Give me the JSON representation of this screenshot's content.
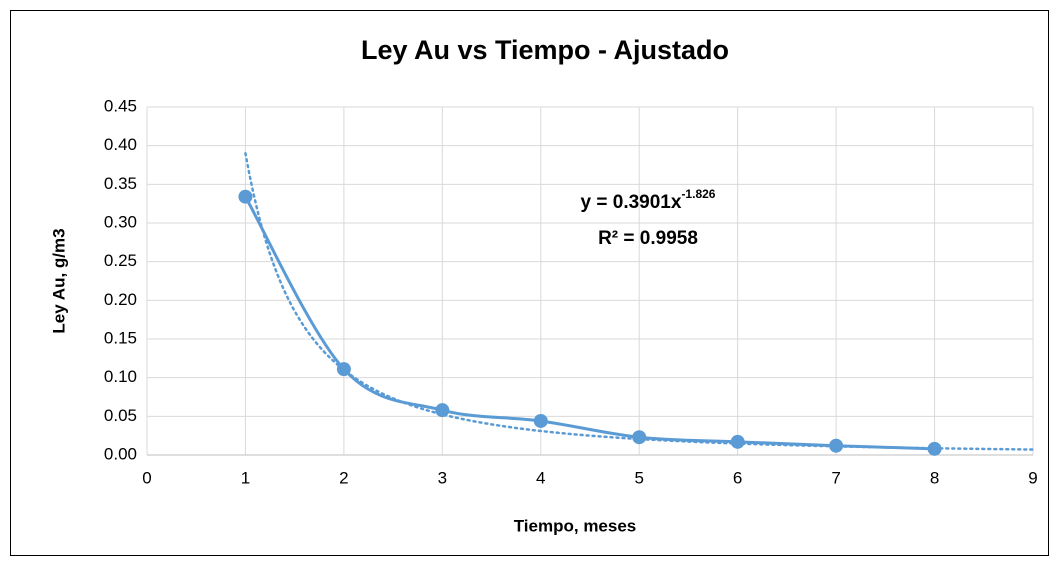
{
  "chart_data": {
    "type": "scatter",
    "title": "Ley Au vs Tiempo - Ajustado",
    "x_label": "Tiempo, meses",
    "y_label": "Ley Au, g/m3",
    "series": [
      {
        "name": "Ley Au",
        "color": "#5b9bd5",
        "x": [
          1,
          2,
          3,
          4,
          5,
          6,
          7,
          8
        ],
        "values": [
          0.334,
          0.111,
          0.058,
          0.044,
          0.023,
          0.017,
          0.012,
          0.008
        ]
      }
    ],
    "trendline": {
      "type": "power",
      "coefficient": 0.3901,
      "exponent": -1.826,
      "r_squared": 0.9958,
      "equation_label": "y = 0.3901x",
      "exponent_label": "-1.826",
      "r_squared_label": "R² = 0.9958"
    },
    "xlim": [
      0,
      9
    ],
    "xticks": [
      0,
      1,
      2,
      3,
      4,
      5,
      6,
      7,
      8,
      9
    ],
    "ylim": [
      0,
      0.45
    ],
    "yticks": [
      {
        "value": 0,
        "label": "0.00"
      },
      {
        "value": 0.05,
        "label": "0.05"
      },
      {
        "value": 0.1,
        "label": "0.10"
      },
      {
        "value": 0.15,
        "label": "0.15"
      },
      {
        "value": 0.2,
        "label": "0.20"
      },
      {
        "value": 0.25,
        "label": "0.25"
      },
      {
        "value": 0.3,
        "label": "0.30"
      },
      {
        "value": 0.35,
        "label": "0.35"
      },
      {
        "value": 0.4,
        "label": "0.40"
      },
      {
        "value": 0.45,
        "label": "0.45"
      }
    ],
    "grid": true
  }
}
